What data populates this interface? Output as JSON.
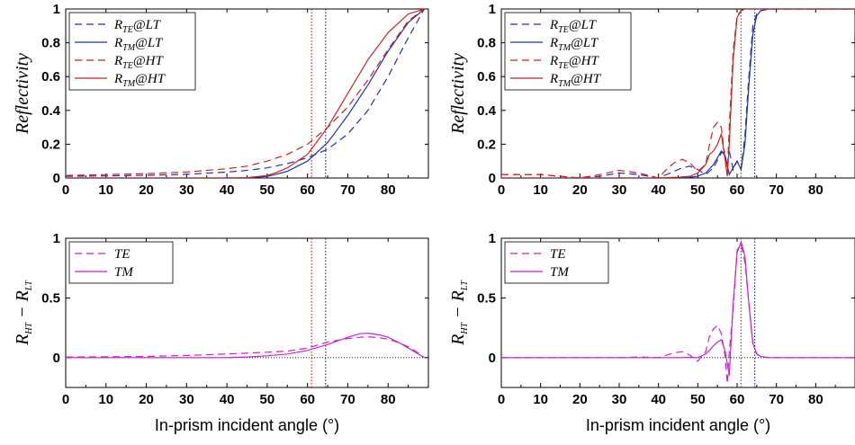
{
  "chart_data": [
    {
      "type": "line",
      "ylabel": "Reflectivity",
      "xlabel": "",
      "xlim": [
        0,
        90
      ],
      "ylim": [
        0,
        1
      ],
      "xticks": [
        "0",
        "10",
        "20",
        "30",
        "40",
        "50",
        "60",
        "70",
        "80"
      ],
      "yticks": [
        "0",
        "0.2",
        "0.4",
        "0.6",
        "0.8",
        "1"
      ],
      "legend_position": "top-left",
      "ref_lines": [
        {
          "x": 61,
          "color": "#cc2200"
        },
        {
          "x": 64.5,
          "color": "#1a1a8c"
        }
      ],
      "series": [
        {
          "name": "R_TE@LT",
          "color": "#2233aa",
          "dash": true,
          "x": [
            0,
            10,
            20,
            30,
            40,
            45,
            50,
            55,
            60,
            65,
            70,
            75,
            80,
            85,
            89
          ],
          "y": [
            0.01,
            0.012,
            0.016,
            0.022,
            0.035,
            0.045,
            0.06,
            0.085,
            0.12,
            0.17,
            0.26,
            0.4,
            0.6,
            0.83,
            1.0
          ]
        },
        {
          "name": "R_TM@LT",
          "color": "#2233aa",
          "dash": false,
          "x": [
            0,
            20,
            30,
            40,
            45,
            50,
            52,
            55,
            60,
            65,
            70,
            75,
            80,
            85,
            89
          ],
          "y": [
            0,
            0,
            0,
            0,
            0,
            0.01,
            0.02,
            0.04,
            0.1,
            0.21,
            0.37,
            0.55,
            0.75,
            0.92,
            1.0
          ]
        },
        {
          "name": "R_TE@HT",
          "color": "#cc2222",
          "dash": true,
          "x": [
            0,
            10,
            20,
            30,
            40,
            45,
            50,
            55,
            60,
            62,
            65,
            70,
            75,
            80,
            85,
            89
          ],
          "y": [
            0.015,
            0.02,
            0.026,
            0.035,
            0.055,
            0.07,
            0.1,
            0.14,
            0.2,
            0.24,
            0.3,
            0.42,
            0.58,
            0.76,
            0.93,
            1.0
          ]
        },
        {
          "name": "R_TM@HT",
          "color": "#cc2222",
          "dash": false,
          "x": [
            0,
            20,
            30,
            40,
            45,
            50,
            52,
            55,
            60,
            65,
            70,
            75,
            80,
            85,
            89
          ],
          "y": [
            0,
            0,
            0,
            0,
            0.002,
            0.015,
            0.03,
            0.06,
            0.14,
            0.3,
            0.5,
            0.7,
            0.86,
            0.97,
            1.0
          ]
        }
      ]
    },
    {
      "type": "line",
      "ylabel": "Reflectivity",
      "xlabel": "",
      "xlim": [
        0,
        90
      ],
      "ylim": [
        0,
        1
      ],
      "xticks": [
        "0",
        "10",
        "20",
        "30",
        "40",
        "50",
        "60",
        "70",
        "80"
      ],
      "yticks": [
        "0",
        "0.2",
        "0.4",
        "0.6",
        "0.8",
        "1"
      ],
      "legend_position": "top-left",
      "ref_lines": [
        {
          "x": 61,
          "color": "#cc2200"
        },
        {
          "x": 64.5,
          "color": "#1a1a8c"
        }
      ],
      "series": [
        {
          "name": "R_TE@LT",
          "color": "#2233aa",
          "dash": true,
          "x": [
            0,
            10,
            20,
            25,
            30,
            35,
            40,
            43,
            46,
            48,
            50,
            52,
            54,
            56,
            58,
            59,
            60,
            61,
            62,
            63,
            64,
            65,
            66,
            68,
            70,
            90
          ],
          "y": [
            0.02,
            0.02,
            0,
            0.01,
            0.03,
            0.02,
            0,
            0.03,
            0.06,
            0.07,
            0.05,
            0.02,
            0.06,
            0.15,
            0.16,
            0.05,
            0.1,
            0.05,
            0.25,
            0.6,
            0.9,
            0.97,
            0.99,
            1,
            1,
            1
          ]
        },
        {
          "name": "R_TM@LT",
          "color": "#2233aa",
          "dash": false,
          "x": [
            0,
            30,
            45,
            48,
            50,
            52,
            54,
            56,
            57,
            58,
            59,
            60,
            61,
            62,
            63,
            64,
            65,
            66,
            68,
            70,
            90
          ],
          "y": [
            0,
            0,
            0,
            0.005,
            0.01,
            0.03,
            0.08,
            0.16,
            0.13,
            0.02,
            0.06,
            0.1,
            0.05,
            0.2,
            0.55,
            0.85,
            0.96,
            0.99,
            1,
            1,
            1
          ]
        },
        {
          "name": "R_TE@HT",
          "color": "#cc2222",
          "dash": true,
          "x": [
            0,
            10,
            20,
            25,
            30,
            35,
            40,
            42,
            44,
            46,
            48,
            50,
            52,
            53,
            54,
            55,
            56,
            57,
            57.5,
            58,
            59,
            60,
            61,
            62,
            65,
            90
          ],
          "y": [
            0.02,
            0.02,
            0,
            0.02,
            0.045,
            0.03,
            0,
            0.05,
            0.09,
            0.11,
            0.09,
            0.04,
            0.08,
            0.2,
            0.3,
            0.33,
            0.3,
            0.1,
            0.02,
            0.3,
            0.75,
            0.96,
            0.99,
            1,
            1,
            1
          ]
        },
        {
          "name": "R_TM@HT",
          "color": "#cc2222",
          "dash": false,
          "x": [
            0,
            30,
            40,
            45,
            48,
            50,
            52,
            53,
            54,
            55,
            56,
            57,
            57.5,
            58,
            59,
            60,
            61,
            62,
            65,
            90
          ],
          "y": [
            0,
            0,
            0,
            0.005,
            0.01,
            0.03,
            0.08,
            0.14,
            0.16,
            0.2,
            0.26,
            0.1,
            0.01,
            0.2,
            0.7,
            0.95,
            0.99,
            1,
            1,
            1
          ]
        }
      ]
    },
    {
      "type": "line",
      "ylabel": "R_HT − R_LT",
      "xlabel": "In-prism incident angle (°)",
      "xlim": [
        0,
        90
      ],
      "ylim": [
        -0.25,
        1
      ],
      "xticks": [
        "0",
        "10",
        "20",
        "30",
        "40",
        "50",
        "60",
        "70",
        "80"
      ],
      "yticks": [
        "0",
        "0.5",
        "1"
      ],
      "legend_position": "top-left",
      "ref_lines": [
        {
          "x": 61,
          "color": "#cc2200"
        },
        {
          "x": 64.5,
          "color": "#1a1a8c"
        }
      ],
      "series": [
        {
          "name": "TE",
          "color": "#cc22cc",
          "dash": true,
          "x": [
            0,
            10,
            20,
            30,
            40,
            50,
            55,
            60,
            65,
            70,
            73,
            75,
            78,
            80,
            83,
            85,
            87,
            89
          ],
          "y": [
            0.005,
            0.007,
            0.01,
            0.018,
            0.03,
            0.045,
            0.055,
            0.08,
            0.13,
            0.16,
            0.17,
            0.175,
            0.165,
            0.155,
            0.12,
            0.09,
            0.05,
            0
          ]
        },
        {
          "name": "TM",
          "color": "#cc22cc",
          "dash": false,
          "x": [
            0,
            20,
            30,
            40,
            45,
            50,
            55,
            60,
            65,
            70,
            73,
            75,
            78,
            80,
            83,
            85,
            87,
            89
          ],
          "y": [
            0,
            0,
            0,
            0,
            0.005,
            0.015,
            0.03,
            0.06,
            0.11,
            0.17,
            0.2,
            0.205,
            0.19,
            0.17,
            0.12,
            0.08,
            0.04,
            0
          ]
        }
      ]
    },
    {
      "type": "line",
      "ylabel": "R_HT − R_LT",
      "xlabel": "In-prism incident angle (°)",
      "xlim": [
        0,
        90
      ],
      "ylim": [
        -0.25,
        1
      ],
      "xticks": [
        "0",
        "10",
        "20",
        "30",
        "40",
        "50",
        "60",
        "70",
        "80"
      ],
      "yticks": [
        "0",
        "0.5",
        "1"
      ],
      "legend_position": "top-left",
      "ref_lines": [
        {
          "x": 61,
          "color": "#cc2200"
        },
        {
          "x": 64.5,
          "color": "#1a1a8c"
        }
      ],
      "series": [
        {
          "name": "TE",
          "color": "#cc22cc",
          "dash": true,
          "x": [
            0,
            20,
            30,
            35,
            40,
            42,
            44,
            46,
            48,
            50,
            52,
            53,
            54,
            55,
            56,
            57,
            57.5,
            58,
            59,
            60,
            61,
            62,
            63,
            64,
            65,
            66,
            68,
            90
          ],
          "y": [
            0,
            0,
            0,
            0.005,
            0,
            0.02,
            0.04,
            0.05,
            0.02,
            -0.03,
            0.05,
            0.18,
            0.24,
            0.27,
            0.2,
            0,
            -0.22,
            0.05,
            0.4,
            0.9,
            0.95,
            0.8,
            0.45,
            0.12,
            0.03,
            0.01,
            0,
            0
          ]
        },
        {
          "name": "TM",
          "color": "#cc22cc",
          "dash": false,
          "x": [
            0,
            40,
            45,
            48,
            50,
            52,
            53,
            54,
            55,
            56,
            57,
            58,
            59,
            60,
            61,
            62,
            63,
            64,
            65,
            66,
            68,
            90
          ],
          "y": [
            0,
            0,
            0,
            0.002,
            0,
            0.03,
            0.06,
            0.1,
            0.13,
            0.15,
            0.05,
            -0.15,
            0.45,
            0.88,
            0.97,
            0.85,
            0.45,
            0.12,
            0.03,
            0.01,
            0,
            0
          ]
        }
      ]
    }
  ]
}
